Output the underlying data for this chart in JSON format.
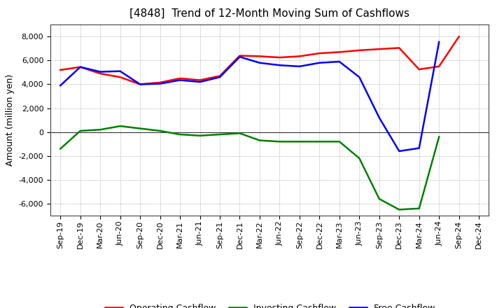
{
  "title": "[4848]  Trend of 12-Month Moving Sum of Cashflows",
  "ylabel": "Amount (million yen)",
  "x_labels": [
    "Sep-19",
    "Dec-19",
    "Mar-20",
    "Jun-20",
    "Sep-20",
    "Dec-20",
    "Mar-21",
    "Jun-21",
    "Sep-21",
    "Dec-21",
    "Mar-22",
    "Jun-22",
    "Sep-22",
    "Dec-22",
    "Mar-23",
    "Jun-23",
    "Sep-23",
    "Dec-23",
    "Mar-24",
    "Jun-24",
    "Sep-24",
    "Dec-24"
  ],
  "operating_cashflow": [
    5200,
    5450,
    4900,
    4600,
    4000,
    4150,
    4500,
    4350,
    4700,
    6400,
    6350,
    6250,
    6350,
    6600,
    6700,
    6850,
    6950,
    7050,
    5250,
    5500,
    8000,
    null
  ],
  "investing_cashflow": [
    -1400,
    100,
    200,
    500,
    300,
    100,
    -200,
    -300,
    -200,
    -100,
    -700,
    -800,
    -800,
    -800,
    -800,
    -2200,
    -5600,
    -6500,
    -6400,
    -400,
    null,
    null
  ],
  "free_cashflow": [
    3900,
    5450,
    5050,
    5100,
    4000,
    4050,
    4350,
    4200,
    4600,
    6300,
    5800,
    5600,
    5500,
    5800,
    5900,
    4600,
    1200,
    -1600,
    -1350,
    7550,
    null,
    null
  ],
  "operating_color": "#ff0000",
  "investing_color": "#008000",
  "free_color": "#0000ff",
  "ylim": [
    -7000,
    9000
  ],
  "yticks": [
    -6000,
    -4000,
    -2000,
    0,
    2000,
    4000,
    6000,
    8000
  ],
  "background_color": "#ffffff",
  "grid_color": "#999999",
  "title_fontsize": 11,
  "axis_fontsize": 8,
  "legend_fontsize": 9,
  "linewidth": 1.8
}
